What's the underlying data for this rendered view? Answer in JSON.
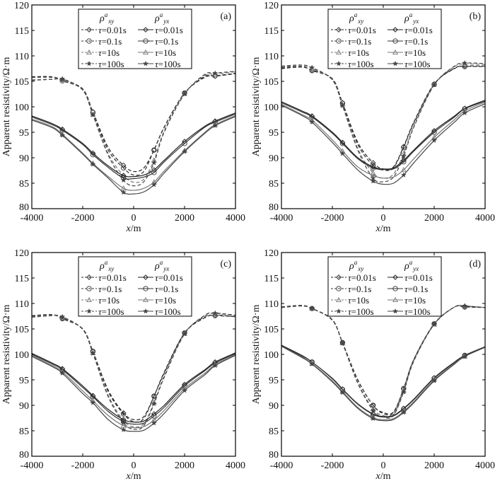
{
  "chart_data": {
    "type": "line",
    "shared": {
      "x": [
        -4000,
        -3200,
        -2800,
        -2000,
        -1600,
        -1000,
        -400,
        0,
        400,
        800,
        1200,
        2000,
        2800,
        3200,
        4000
      ],
      "marker_x": [
        -2800,
        -1600,
        -400,
        800,
        2000,
        3200
      ],
      "xlim": [
        -4000,
        4000
      ],
      "ylim": [
        80,
        120
      ],
      "xticks": [
        -4000,
        -2000,
        0,
        2000,
        4000
      ],
      "yticks": [
        80,
        85,
        90,
        95,
        100,
        105,
        110,
        115,
        120
      ],
      "xlabel_italic": "x",
      "xlabel_rest": "/m",
      "ylabel": "Apparent resistivity/Ω·m",
      "legend": {
        "placement": "top-center",
        "header_xy": {
          "sym": "ρ",
          "sup": "a",
          "sub": "xy"
        },
        "header_yx": {
          "sym": "ρ",
          "sup": "a",
          "sub": "yx"
        },
        "tau_symbol": "τ",
        "labels": [
          "=0.01s",
          "=0.1s",
          "=10s",
          "=100s"
        ],
        "markers": [
          "diamond",
          "circle",
          "triangle",
          "star"
        ]
      },
      "styles": {
        "xy": "dashed",
        "yx": "solid"
      }
    },
    "panels": [
      {
        "label": "(a)",
        "xy": [
          [
            105.8,
            105.8,
            105.3,
            103.5,
            99,
            92,
            88.5,
            87.3,
            88,
            91.5,
            96,
            102.7,
            105.8,
            106,
            106.5
          ],
          [
            105.9,
            105.9,
            105.1,
            103.4,
            98.9,
            91.5,
            88,
            86.6,
            87.3,
            91.5,
            96,
            102.7,
            106,
            106.1,
            106.6
          ],
          [
            105.3,
            105.4,
            105.3,
            103.3,
            98.5,
            90.8,
            86.5,
            85.2,
            85.8,
            89.5,
            95.3,
            102.6,
            106.2,
            106.4,
            106.9
          ],
          [
            105.2,
            105.4,
            105.5,
            103.3,
            98.4,
            90.5,
            85.6,
            84.5,
            85.3,
            89,
            95,
            102.5,
            106.4,
            106.6,
            107
          ]
        ],
        "yx": [
          [
            98.2,
            96.7,
            95.6,
            92.8,
            90.9,
            88.4,
            86.5,
            86.3,
            86.6,
            87.6,
            89.5,
            93.2,
            96.2,
            97.2,
            98.8
          ],
          [
            98,
            96.5,
            95.4,
            92.6,
            90.6,
            88.1,
            86,
            85.9,
            86.2,
            87.1,
            89.2,
            92.8,
            96,
            97,
            98.6
          ],
          [
            97.6,
            96.1,
            94.6,
            90.9,
            88.9,
            86.3,
            84,
            83.6,
            84,
            85.2,
            87.4,
            91.4,
            95,
            96.5,
            98.3
          ],
          [
            97.4,
            95.9,
            94.4,
            90.7,
            88.7,
            86,
            83.2,
            82.9,
            83.3,
            84.7,
            87,
            91.2,
            94.8,
            96.3,
            98.1
          ]
        ]
      },
      {
        "label": "(b)",
        "xy": [
          [
            107.5,
            107.8,
            107.2,
            105.5,
            100.8,
            93,
            89,
            87.8,
            88.2,
            92.2,
            97,
            104.5,
            107.5,
            108,
            108
          ],
          [
            107.7,
            107.9,
            107.1,
            105.5,
            100.7,
            92.6,
            88.5,
            87.6,
            88,
            92,
            96.8,
            104.4,
            107.6,
            107.9,
            107.9
          ],
          [
            107.9,
            108,
            107.5,
            105.3,
            100.4,
            91.8,
            87,
            86,
            86.8,
            90.8,
            96.3,
            104.4,
            107.9,
            108.4,
            108.3
          ],
          [
            108,
            108.2,
            107.7,
            105.3,
            100.2,
            91.5,
            86,
            85.3,
            86.2,
            90.3,
            96,
            104.3,
            108,
            108.6,
            108.5
          ]
        ],
        "yx": [
          [
            101,
            99.2,
            98.2,
            95,
            93,
            90,
            88.2,
            87.8,
            88,
            89.5,
            91.5,
            95.3,
            98.2,
            99.7,
            101.3
          ],
          [
            100.8,
            99,
            98,
            94.8,
            92.8,
            89.8,
            88,
            87.7,
            87.8,
            89.2,
            91.3,
            95,
            98,
            99.6,
            101.1
          ],
          [
            100.5,
            98.5,
            97.4,
            93.5,
            91.3,
            88.2,
            86.5,
            86,
            86.2,
            87.6,
            89.8,
            94,
            97.5,
            99.2,
            100.9
          ],
          [
            100.3,
            98.3,
            97,
            93,
            90.8,
            87.6,
            85.4,
            84.8,
            85,
            86.6,
            89,
            93.4,
            97,
            98.8,
            100.6
          ]
        ]
      },
      {
        "label": "(c)",
        "xy": [
          [
            107.5,
            107.8,
            107.1,
            105,
            100.6,
            93,
            88.5,
            87.2,
            87.8,
            91.8,
            96.5,
            104.2,
            107.2,
            107.7,
            107.4
          ],
          [
            107.6,
            107.8,
            107,
            105,
            100.6,
            92.7,
            88.3,
            86.8,
            87.4,
            91.8,
            96.3,
            104.2,
            107.4,
            107.6,
            107.4
          ],
          [
            107.4,
            107.7,
            107.3,
            104.9,
            100.3,
            92,
            87,
            85.8,
            86.4,
            90.6,
            95.8,
            104.1,
            107.6,
            108,
            107.6
          ],
          [
            107.3,
            107.6,
            107.4,
            104.9,
            100.2,
            91.7,
            86.6,
            85.3,
            86,
            90.3,
            95.5,
            104,
            107.7,
            108.1,
            107.7
          ]
        ],
        "yx": [
          [
            100.2,
            98.3,
            97.2,
            93.8,
            91.9,
            89.2,
            87.2,
            86.7,
            86.9,
            88.3,
            90,
            94.1,
            97,
            98.5,
            100.3
          ],
          [
            100,
            98.1,
            97,
            93.5,
            91.7,
            88.8,
            86.8,
            86.3,
            86.5,
            87.9,
            89.6,
            93.8,
            96.8,
            98.3,
            100.1
          ],
          [
            99.8,
            97.8,
            96.6,
            92.8,
            90.9,
            88,
            86,
            85.6,
            85.8,
            87.1,
            89,
            93.3,
            96.3,
            98,
            99.9
          ],
          [
            99.6,
            97.6,
            96.3,
            92.3,
            90.5,
            87.2,
            85.2,
            84.9,
            85.1,
            86.5,
            88.4,
            92.9,
            96,
            97.8,
            99.8
          ]
        ]
      },
      {
        "label": "(d)",
        "xy": [
          [
            109.3,
            109.6,
            109,
            106.8,
            102.3,
            95,
            90,
            88.6,
            88.7,
            93.2,
            99,
            106,
            109.3,
            109.4,
            109.2
          ],
          [
            109.3,
            109.6,
            109,
            106.8,
            102.3,
            95,
            90,
            88.4,
            88.5,
            93.3,
            99,
            106,
            109.3,
            109.3,
            109.2
          ],
          [
            109.2,
            109.5,
            109,
            106.7,
            102.2,
            94.5,
            89.3,
            88,
            88.2,
            92.8,
            98.8,
            105.9,
            109.3,
            109.5,
            109.2
          ],
          [
            109.2,
            109.5,
            109,
            106.7,
            102.2,
            94.3,
            89,
            87.7,
            88,
            92.6,
            98.7,
            105.9,
            109.3,
            109.5,
            109.2
          ]
        ],
        "yx": [
          [
            101.8,
            99.8,
            98.5,
            95.3,
            93.2,
            90.3,
            88.3,
            87.8,
            88,
            89.4,
            91.2,
            95.4,
            98.5,
            99.8,
            101.5
          ],
          [
            101.7,
            99.7,
            98.5,
            95.2,
            93.1,
            90.2,
            88.2,
            87.7,
            87.9,
            89.3,
            91.1,
            95.3,
            98.4,
            99.8,
            101.5
          ],
          [
            101.6,
            99.5,
            98.2,
            94.8,
            92.7,
            89.6,
            87.6,
            87.2,
            87.4,
            88.8,
            90.7,
            95,
            98.2,
            99.6,
            101.4
          ],
          [
            101.6,
            99.4,
            98.1,
            94.6,
            92.5,
            89.4,
            87.4,
            87,
            87.2,
            88.6,
            90.5,
            94.8,
            98.1,
            99.6,
            101.4
          ]
        ]
      }
    ]
  }
}
